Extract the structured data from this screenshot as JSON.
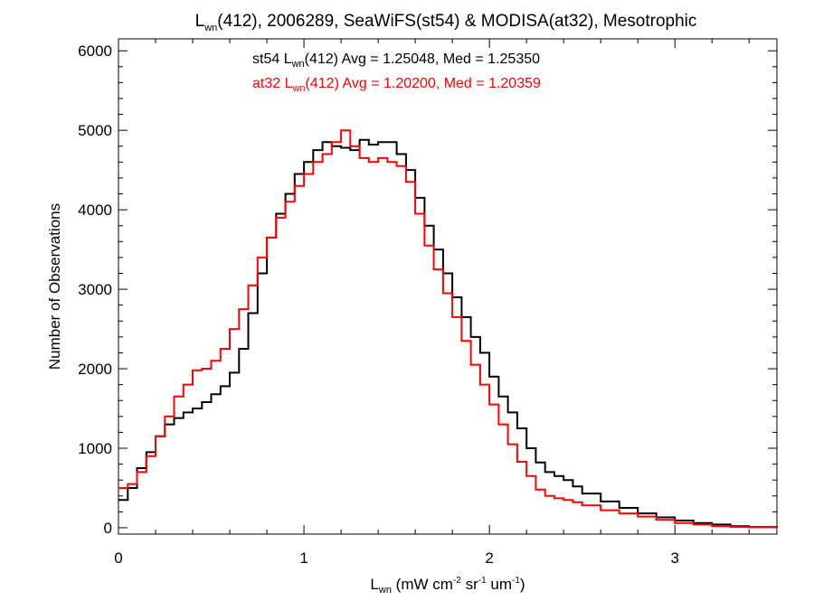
{
  "chart_data": {
    "type": "line",
    "title": {
      "prefix": "L",
      "sub": "wn",
      "rest": "(412), 2006289, SeaWiFS(st54) & MODISA(at32), Mesotrophic"
    },
    "xlabel": {
      "prefix": "L",
      "sub": "wn",
      "p1": " (mW cm",
      "s1": "-2",
      "p2": " sr",
      "s2": "-1",
      "p3": " um",
      "s3": "-1",
      "p4": ")"
    },
    "ylabel": "Number of Observations",
    "xlim": [
      0,
      3.55
    ],
    "ylim": [
      -80,
      6150
    ],
    "xticks": [
      0,
      1,
      2,
      3
    ],
    "xtick_labels": [
      "0",
      "1",
      "2",
      "3"
    ],
    "yticks": [
      0,
      1000,
      2000,
      3000,
      4000,
      5000,
      6000
    ],
    "ytick_labels": [
      "0",
      "1000",
      "2000",
      "3000",
      "4000",
      "5000",
      "6000"
    ],
    "grid": false,
    "annotations": [
      {
        "pre": "st54 L",
        "sub": "wn",
        "post": "(412) Avg = 1.25048, Med = 1.25350",
        "color": "#000000"
      },
      {
        "pre": "at32 L",
        "sub": "wn",
        "post": "(412) Avg = 1.20200, Med = 1.20359",
        "color": "#ff0000"
      }
    ],
    "series": [
      {
        "color": "#000000",
        "x": [
          0.0,
          0.05,
          0.1,
          0.15,
          0.2,
          0.25,
          0.3,
          0.35,
          0.4,
          0.45,
          0.5,
          0.55,
          0.6,
          0.65,
          0.7,
          0.75,
          0.8,
          0.85,
          0.9,
          0.95,
          1.0,
          1.05,
          1.1,
          1.15,
          1.2,
          1.25,
          1.3,
          1.35,
          1.4,
          1.45,
          1.5,
          1.55,
          1.6,
          1.65,
          1.7,
          1.75,
          1.8,
          1.85,
          1.9,
          1.95,
          2.0,
          2.05,
          2.1,
          2.15,
          2.2,
          2.25,
          2.3,
          2.35,
          2.4,
          2.45,
          2.5,
          2.6,
          2.7,
          2.8,
          2.9,
          3.0,
          3.1,
          3.2,
          3.3,
          3.4,
          3.55
        ],
        "y": [
          350,
          500,
          750,
          950,
          1150,
          1300,
          1380,
          1450,
          1500,
          1580,
          1680,
          1780,
          1950,
          2250,
          2700,
          3200,
          3650,
          3950,
          4200,
          4450,
          4600,
          4750,
          4850,
          4800,
          4780,
          4750,
          4880,
          4820,
          4850,
          4850,
          4700,
          4500,
          4150,
          3800,
          3500,
          3200,
          2900,
          2650,
          2400,
          2200,
          1900,
          1650,
          1450,
          1250,
          1000,
          820,
          700,
          650,
          600,
          520,
          430,
          330,
          250,
          180,
          130,
          90,
          60,
          40,
          20,
          10,
          5
        ]
      },
      {
        "color": "#ff0000",
        "x": [
          0.0,
          0.05,
          0.1,
          0.15,
          0.2,
          0.25,
          0.3,
          0.35,
          0.4,
          0.45,
          0.5,
          0.55,
          0.6,
          0.65,
          0.7,
          0.75,
          0.8,
          0.85,
          0.9,
          0.95,
          1.0,
          1.05,
          1.1,
          1.15,
          1.2,
          1.25,
          1.3,
          1.35,
          1.4,
          1.45,
          1.5,
          1.55,
          1.6,
          1.65,
          1.7,
          1.75,
          1.8,
          1.85,
          1.9,
          1.95,
          2.0,
          2.05,
          2.1,
          2.15,
          2.2,
          2.25,
          2.3,
          2.35,
          2.4,
          2.45,
          2.5,
          2.6,
          2.7,
          2.8,
          2.9,
          3.0,
          3.1,
          3.2,
          3.3,
          3.4,
          3.55
        ],
        "y": [
          500,
          550,
          700,
          900,
          1150,
          1400,
          1650,
          1800,
          1980,
          2000,
          2100,
          2250,
          2500,
          2750,
          3050,
          3400,
          3650,
          3900,
          4100,
          4300,
          4450,
          4600,
          4700,
          4850,
          5000,
          4800,
          4650,
          4600,
          4650,
          4600,
          4550,
          4350,
          3950,
          3550,
          3250,
          2950,
          2650,
          2350,
          2050,
          1800,
          1550,
          1300,
          1050,
          830,
          650,
          480,
          400,
          370,
          350,
          320,
          280,
          220,
          180,
          140,
          100,
          60,
          40,
          20,
          10,
          5,
          5
        ]
      }
    ]
  }
}
